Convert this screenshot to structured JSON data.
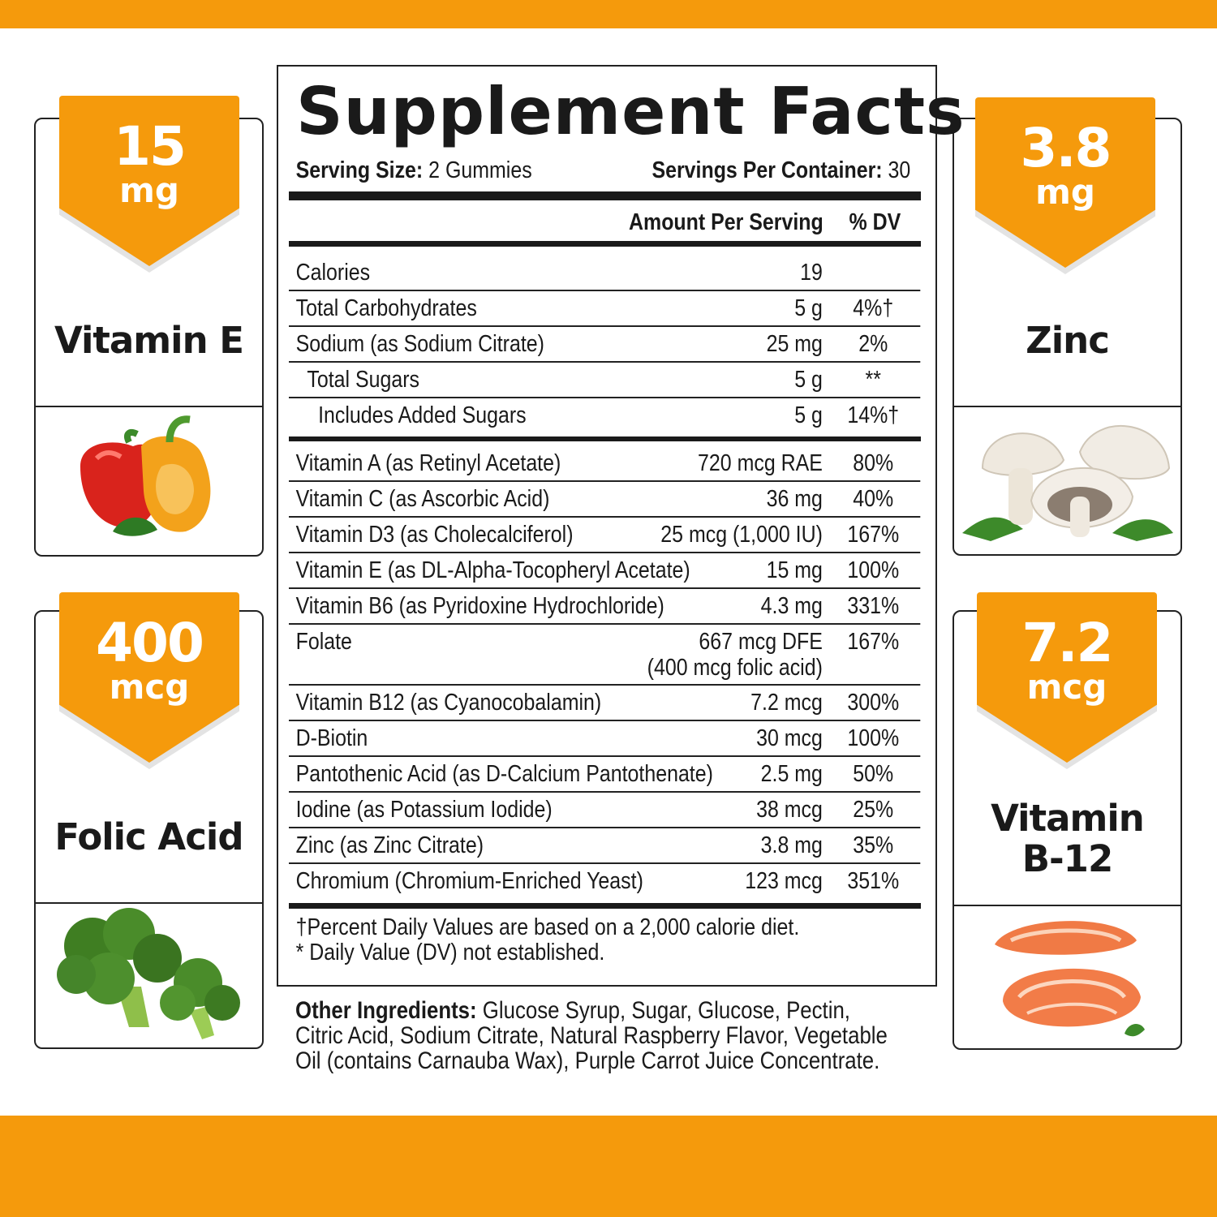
{
  "colors": {
    "accent": "#f59a0c",
    "text": "#1a1a1a"
  },
  "left_cards": [
    {
      "amount": "15",
      "unit": "mg",
      "name": "Vitamin E",
      "food_icon": "bell-pepper-icon"
    },
    {
      "amount": "400",
      "unit": "mcg",
      "name": "Folic Acid",
      "food_icon": "broccoli-icon"
    }
  ],
  "right_cards": [
    {
      "amount": "3.8",
      "unit": "mg",
      "name": "Zinc",
      "food_icon": "mushroom-icon"
    },
    {
      "amount": "7.2",
      "unit": "mcg",
      "name_line1": "Vitamin",
      "name_line2": "B-12",
      "food_icon": "salmon-icon"
    }
  ],
  "facts": {
    "title": "Supplement Facts",
    "serving_size_label": "Serving Size:",
    "serving_size_value": " 2 Gummies",
    "servings_label": "Servings Per Container:",
    "servings_value": " 30",
    "header_amount": "Amount Per Serving",
    "header_dv": "% DV",
    "section1": [
      {
        "name": "Calories",
        "amount": "19",
        "dv": ""
      },
      {
        "name": "Total Carbohydrates",
        "amount": "5 g",
        "dv": "4%†"
      },
      {
        "name": "Sodium (as Sodium Citrate)",
        "amount": "25 mg",
        "dv": "2%"
      },
      {
        "name": "Total Sugars",
        "amount": "5 g",
        "dv": "**"
      },
      {
        "name": "Includes Added Sugars",
        "amount": "5 g",
        "dv": "14%†"
      }
    ],
    "section2": [
      {
        "name": "Vitamin A (as Retinyl Acetate)",
        "amount": "720 mcg RAE",
        "dv": "80%"
      },
      {
        "name": "Vitamin C (as Ascorbic Acid)",
        "amount": "36 mg",
        "dv": "40%"
      },
      {
        "name": "Vitamin D3 (as Cholecalciferol)",
        "amount": "25 mcg (1,000 IU)",
        "dv": "167%"
      },
      {
        "name": "Vitamin E (as DL-Alpha-Tocopheryl Acetate)",
        "amount": "15 mg",
        "dv": "100%"
      },
      {
        "name": "Vitamin B6 (as Pyridoxine Hydrochloride)",
        "amount": "4.3 mg",
        "dv": "331%"
      },
      {
        "name": "Folate",
        "amount": "667 mcg DFE",
        "amount_line2": "(400 mcg folic acid)",
        "dv": "167%"
      },
      {
        "name": "Vitamin B12 (as Cyanocobalamin)",
        "amount": "7.2 mcg",
        "dv": "300%"
      },
      {
        "name": "D-Biotin",
        "amount": "30 mcg",
        "dv": "100%"
      },
      {
        "name": "Pantothenic Acid (as D-Calcium Pantothenate)",
        "amount": "2.5 mg",
        "dv": "50%"
      },
      {
        "name": "Iodine (as Potassium Iodide)",
        "amount": "38 mcg",
        "dv": "25%"
      },
      {
        "name": "Zinc (as Zinc Citrate)",
        "amount": "3.8 mg",
        "dv": "35%"
      },
      {
        "name": "Chromium (Chromium-Enriched Yeast)",
        "amount": "123 mcg",
        "dv": "351%"
      }
    ],
    "footnote1": "†Percent Daily Values are based on a 2,000 calorie diet.",
    "footnote2": "* Daily Value (DV) not established."
  },
  "other_ingredients": {
    "label": "Other Ingredients:",
    "text": " Glucose Syrup, Sugar, Glucose, Pectin, Citric Acid, Sodium Citrate, Natural Raspberry Flavor, Vegetable Oil (contains Carnauba Wax), Purple Carrot Juice Concentrate."
  }
}
